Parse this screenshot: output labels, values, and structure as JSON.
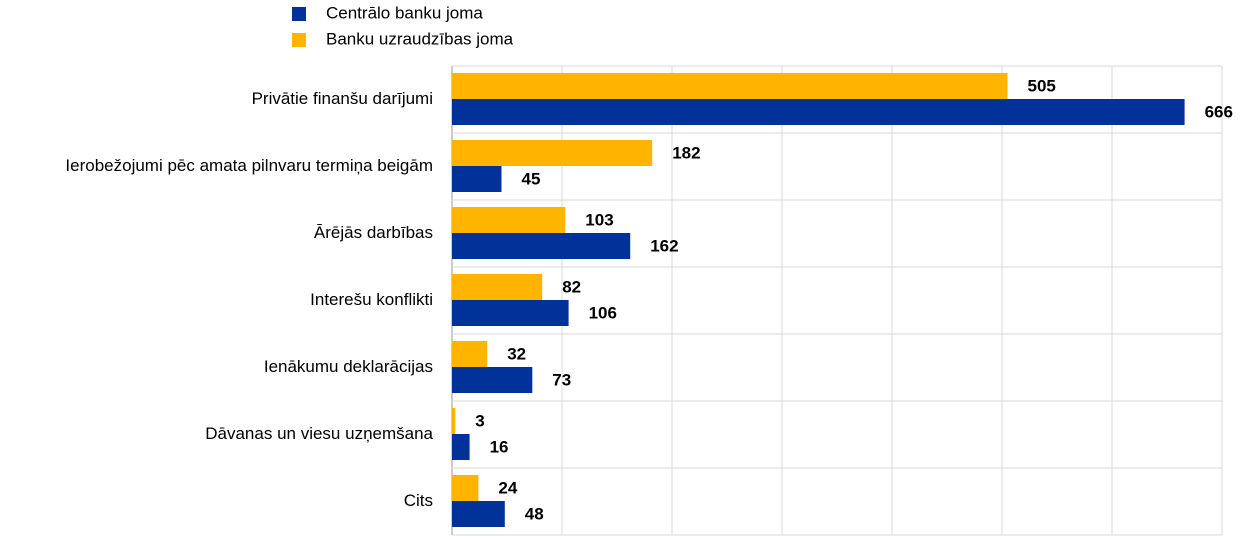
{
  "chart_data": {
    "type": "hbar",
    "categories": [
      "Privātie finanšu darījumi",
      "Ierobežojumi pēc amata pilnvaru termiņa beigām",
      "Ārējās darbības",
      "Interešu konflikti",
      "Ienākumu deklarācijas",
      "Dāvanas un viesu uzņemšana",
      "Cits"
    ],
    "series": [
      {
        "name": "Centrālo banku joma",
        "color": "#003299",
        "values": [
          666,
          45,
          162,
          106,
          73,
          16,
          48
        ]
      },
      {
        "name": "Banku uzraudzības joma",
        "color": "#ffb400",
        "values": [
          505,
          182,
          103,
          82,
          32,
          3,
          24
        ]
      }
    ],
    "xlim": [
      0,
      700
    ],
    "xticks": [
      0,
      100,
      200,
      300,
      400,
      500,
      600,
      700
    ],
    "grid": true
  }
}
